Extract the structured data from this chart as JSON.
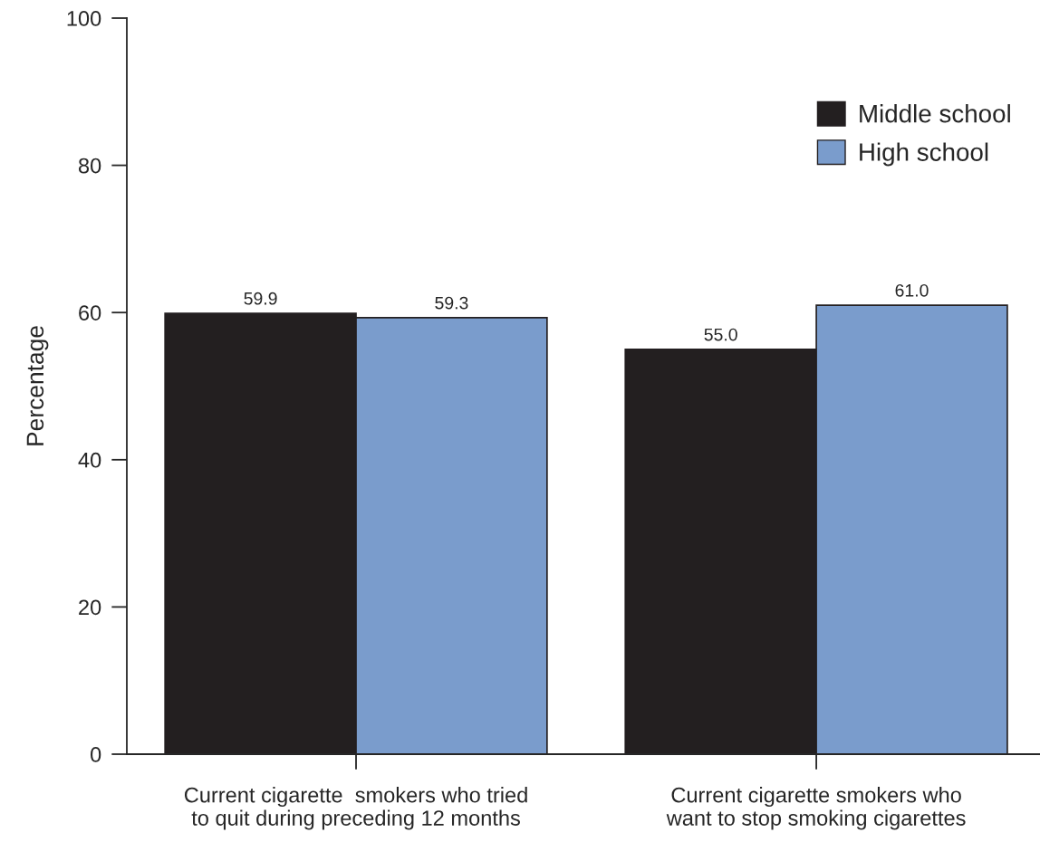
{
  "chart_data": {
    "type": "bar",
    "ylabel": "Percentage",
    "categories": [
      "Current cigarette  smokers who tried\nto quit during preceding 12 months",
      "Current cigarette smokers who\nwant to stop smoking cigarettes"
    ],
    "series": [
      {
        "name": "Middle school",
        "color": "#231f20",
        "values": [
          59.9,
          55.0
        ],
        "value_labels": [
          "59.9",
          "55.0"
        ]
      },
      {
        "name": "High school",
        "color": "#7a9ccc",
        "values": [
          59.3,
          61.0
        ],
        "value_labels": [
          "59.3",
          "61.0"
        ]
      }
    ],
    "ylim": [
      0,
      100
    ],
    "yticks": [
      0,
      20,
      40,
      60,
      80,
      100
    ],
    "grid": false,
    "legend": "top right"
  }
}
